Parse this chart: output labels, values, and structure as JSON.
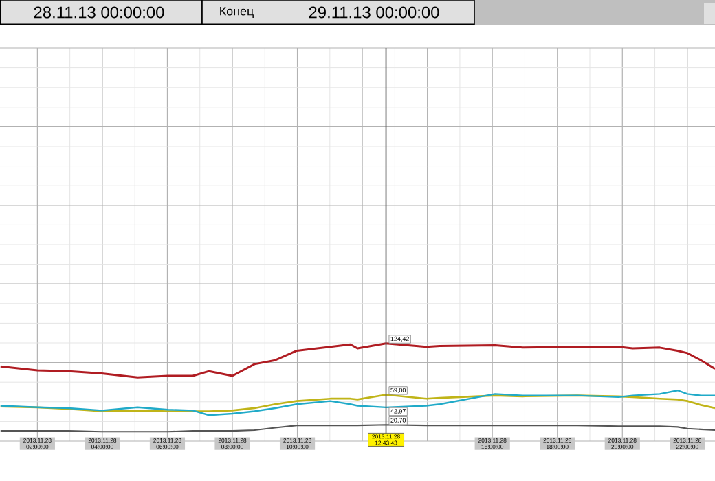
{
  "chart_data": {
    "type": "line",
    "annotations": [
      "28.11.13 00:00:00",
      "Конец",
      "29.11.13 00:00:00"
    ],
    "x": [
      "2013-11-28T00:52",
      "2013-11-28T02:00",
      "2013-11-28T02:58",
      "2013-11-28T03:59",
      "2013-11-28T05:05",
      "2013-11-28T06:01",
      "2013-11-28T06:47",
      "2013-11-28T07:17",
      "2013-11-28T08:00",
      "2013-11-28T08:41",
      "2013-11-28T09:19",
      "2013-11-28T09:59",
      "2013-11-28T11:01",
      "2013-11-28T11:38",
      "2013-11-28T11:51",
      "2013-11-28T12:43:43",
      "2013-11-28T13:58",
      "2013-11-28T14:23",
      "2013-11-28T16:05",
      "2013-11-28T16:56",
      "2013-11-28T18:37",
      "2013-11-28T19:53",
      "2013-11-28T20:19",
      "2013-11-28T21:09",
      "2013-11-28T21:42",
      "2013-11-28T22:00",
      "2013-11-28T22:25",
      "2013-11-28T22:51"
    ],
    "series": [
      {
        "color": "#b01c22",
        "values": [
          95,
          90,
          89,
          86,
          81,
          83,
          83,
          89,
          83,
          98,
          103,
          115,
          120,
          123,
          118,
          124.42,
          120,
          121,
          122,
          119,
          120,
          120,
          118,
          119,
          115,
          112,
          103,
          92
        ],
        "value_labels": [
          null,
          null,
          null,
          null,
          null,
          null,
          null,
          null,
          null,
          null,
          null,
          null,
          null,
          null,
          null,
          "124,42",
          null,
          null,
          null,
          null,
          null,
          null,
          null,
          null,
          null,
          null,
          null,
          null
        ]
      },
      {
        "color": "#c0b418",
        "values": [
          44,
          43,
          41,
          38,
          39,
          38,
          38,
          38,
          39,
          42,
          47,
          51,
          54,
          54,
          53,
          59,
          54,
          55,
          58,
          57,
          58,
          57,
          56,
          54,
          53,
          51,
          46,
          42
        ],
        "value_labels": [
          null,
          null,
          null,
          null,
          null,
          null,
          null,
          null,
          null,
          null,
          null,
          null,
          null,
          null,
          null,
          "59,00",
          null,
          null,
          null,
          null,
          null,
          null,
          null,
          null,
          null,
          null,
          null,
          null
        ]
      },
      {
        "color": "#20aac8",
        "values": [
          45,
          43,
          42,
          39,
          43,
          40,
          39,
          33,
          35,
          38,
          42,
          47,
          51,
          47,
          45,
          42.97,
          45,
          47,
          60,
          58,
          58,
          56,
          58,
          60,
          64.5,
          60,
          58,
          58
        ],
        "value_labels": [
          null,
          null,
          null,
          null,
          null,
          null,
          null,
          null,
          null,
          null,
          null,
          null,
          null,
          null,
          null,
          "42,97",
          null,
          null,
          null,
          null,
          null,
          null,
          null,
          null,
          null,
          null,
          null,
          null
        ]
      },
      {
        "color": "#555555",
        "values": [
          13,
          13,
          13,
          12,
          12,
          12,
          13,
          13,
          13,
          14,
          17,
          20,
          20,
          20,
          20,
          20.7,
          20,
          20,
          20,
          20,
          20,
          19,
          19,
          19,
          18,
          16,
          15,
          14
        ],
        "value_labels": [
          null,
          null,
          null,
          null,
          null,
          null,
          null,
          null,
          null,
          null,
          null,
          null,
          null,
          null,
          null,
          "20,70",
          null,
          null,
          null,
          null,
          null,
          null,
          null,
          null,
          null,
          null,
          null,
          null
        ]
      }
    ],
    "xlim": [
      "2013-11-28T00:51",
      "2013-11-28T22:51"
    ],
    "xticks": [
      {
        "value": "2013-11-28T02:00",
        "label": "2013.11.28 02:00:00"
      },
      {
        "value": "2013-11-28T04:00",
        "label": "2013.11.28 04:00:00"
      },
      {
        "value": "2013-11-28T06:00",
        "label": "2013.11.28 06:00:00"
      },
      {
        "value": "2013-11-28T08:00",
        "label": "2013.11.28 08:00:00"
      },
      {
        "value": "2013-11-28T10:00",
        "label": "2013.11.28 10:00:00"
      },
      {
        "value": "2013-11-28T12:00",
        "label": null
      },
      {
        "value": "2013-11-28T14:00",
        "label": null
      },
      {
        "value": "2013-11-28T16:00",
        "label": "2013.11.28 16:00:00"
      },
      {
        "value": "2013-11-28T18:00",
        "label": "2013.11.28 18:00:00"
      },
      {
        "value": "2013-11-28T20:00",
        "label": "2013.11.28 20:00:00"
      },
      {
        "value": "2013-11-28T22:00",
        "label": "2013.11.28 22:00:00"
      }
    ],
    "ylim": [
      0,
      500
    ],
    "yticks": [
      {
        "value": 0,
        "label": null
      },
      {
        "value": 100,
        "label": null
      },
      {
        "value": 200,
        "label": null
      },
      {
        "value": 300,
        "label": null
      },
      {
        "value": 400,
        "label": null
      },
      {
        "value": 500,
        "label": null
      }
    ],
    "tick_labels": "x",
    "grid": true,
    "ref_lines": [
      {
        "axis": "x",
        "value": "2013-11-28T12:43:43",
        "label": "2013.11.28 12:43:43",
        "color": "#606060"
      }
    ]
  }
}
